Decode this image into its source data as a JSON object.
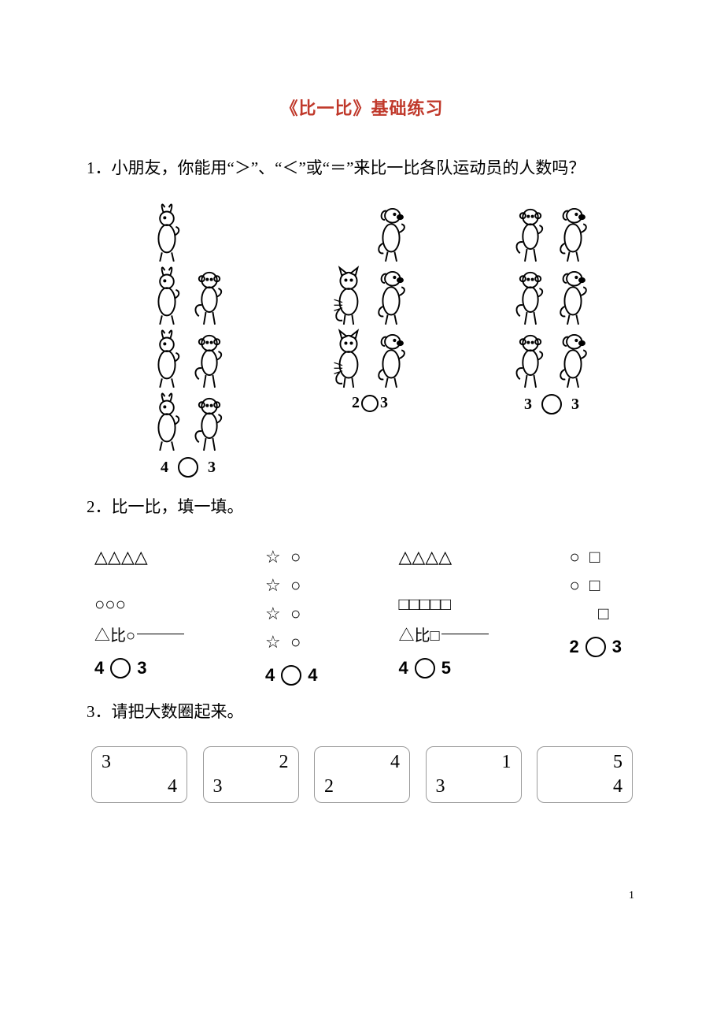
{
  "title": {
    "text": "《比一比》基础练习",
    "color": "#c0392b"
  },
  "q1": {
    "prompt": "1．小朋友，你能用“＞”、“＜”或“＝”来比一比各队运动员的人数吗？",
    "groups": [
      {
        "left_count": 4,
        "left_animal": "rabbit",
        "right_count": 3,
        "right_animal": "monkey",
        "left_label": "4",
        "right_label": "3"
      },
      {
        "left_count": 2,
        "left_animal": "cat",
        "right_count": 3,
        "right_animal": "dog",
        "left_label": "2",
        "right_label": "3"
      },
      {
        "left_count": 3,
        "left_animal": "monkey",
        "right_count": 3,
        "right_animal": "dog",
        "left_label": "3",
        "right_label": "3"
      }
    ],
    "circle_stroke": "#000000",
    "animal_cell_h": 80
  },
  "q2": {
    "prompt": "2．比一比，填一填。",
    "blocks": [
      {
        "row1": "△△△△",
        "row2": "",
        "row3": "○○○",
        "than": "△比○",
        "cmp_left": "4",
        "cmp_right": "3"
      },
      {
        "row1": "☆  ○",
        "row2": "☆  ○",
        "row3": "☆  ○",
        "row4": "☆  ○",
        "cmp_left": "4",
        "cmp_right": "4"
      },
      {
        "row1": "△△△△",
        "row2": "",
        "row3": "□□□□□",
        "than": "△比□",
        "cmp_left": "4",
        "cmp_right": "5"
      },
      {
        "row1": "○  □",
        "row2": "○  □",
        "row3": "      □",
        "cmp_left": "2",
        "cmp_right": "3"
      }
    ]
  },
  "q3": {
    "prompt": "3．请把大数圈起来。",
    "boxes": [
      {
        "a": "3",
        "a_pos": "tl",
        "b": "4",
        "b_pos": "br"
      },
      {
        "a": "2",
        "a_pos": "tr",
        "b": "3",
        "b_pos": "bl"
      },
      {
        "a": "4",
        "a_pos": "tr",
        "b": "2",
        "b_pos": "bl"
      },
      {
        "a": "1",
        "a_pos": "tr",
        "b": "3",
        "b_pos": "bl"
      },
      {
        "a": "5",
        "a_pos": "tr",
        "b": "4",
        "b_pos": "br"
      }
    ]
  },
  "page_number": "1"
}
